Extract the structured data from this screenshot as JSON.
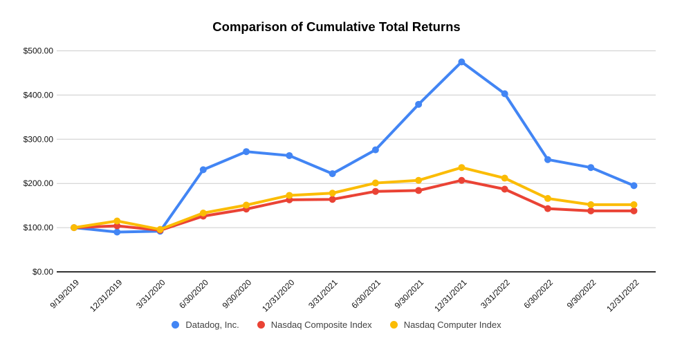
{
  "chart_data": {
    "type": "line",
    "title": "Comparison of Cumulative Total Returns",
    "categories": [
      "9/19/2019",
      "12/31/2019",
      "3/31/2020",
      "6/30/2020",
      "9/30/2020",
      "12/31/2020",
      "3/31/2021",
      "6/30/2021",
      "9/30/2021",
      "12/31/2021",
      "3/31/2022",
      "6/30/2022",
      "9/30/2022",
      "12/31/2022"
    ],
    "series": [
      {
        "name": "Datadog, Inc.",
        "color": "#4285F4",
        "values": [
          100,
          90,
          92,
          231,
          272,
          263,
          222,
          276,
          379,
          475,
          403,
          254,
          236,
          195
        ]
      },
      {
        "name": "Nasdaq Composite Index",
        "color": "#EA4335",
        "values": [
          100,
          104,
          94,
          126,
          142,
          163,
          164,
          182,
          184,
          207,
          187,
          143,
          138,
          138
        ]
      },
      {
        "name": "Nasdaq Computer Index",
        "color": "#FBBC04",
        "values": [
          100,
          115,
          96,
          133,
          151,
          173,
          178,
          201,
          207,
          236,
          212,
          166,
          152,
          152
        ]
      }
    ],
    "y_ticks": [
      {
        "label": "$0.00",
        "value": 0
      },
      {
        "label": "$100.00",
        "value": 100
      },
      {
        "label": "$200.00",
        "value": 200
      },
      {
        "label": "$300.00",
        "value": 300
      },
      {
        "label": "$400.00",
        "value": 400
      },
      {
        "label": "$500.00",
        "value": 500
      }
    ],
    "ylim": [
      0,
      500
    ],
    "grid": true,
    "legend_position": "bottom"
  },
  "colors": {
    "gridline": "#cccccc",
    "axis_line": "#333333",
    "tick_text": "#111111",
    "legend_text": "#424242",
    "title_text": "#000000",
    "background": "#ffffff"
  }
}
